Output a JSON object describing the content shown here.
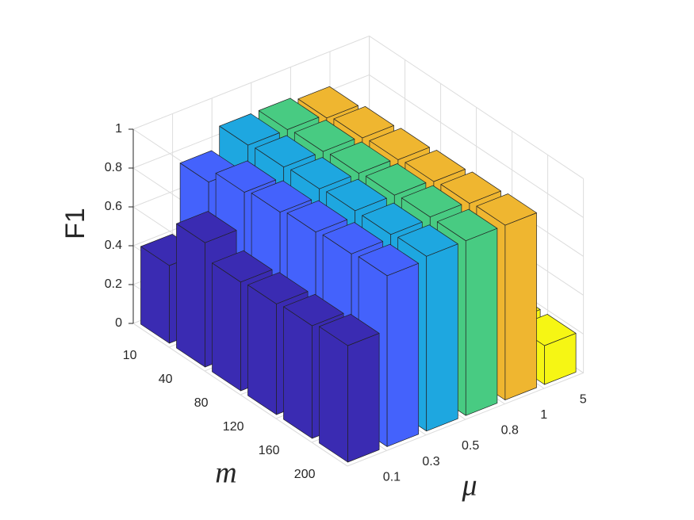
{
  "chart_data": {
    "type": "bar3",
    "xlabel": "m",
    "ylabel": "μ",
    "zlabel": "F1",
    "categories": [
      "10",
      "40",
      "80",
      "120",
      "160",
      "200"
    ],
    "series": [
      {
        "name": "0.1",
        "color": "#3a2bb2",
        "values": [
          0.4,
          0.64,
          0.56,
          0.57,
          0.58,
          0.6
        ]
      },
      {
        "name": "0.3",
        "color": "#4462fc",
        "values": [
          0.75,
          0.82,
          0.84,
          0.86,
          0.87,
          0.88
        ]
      },
      {
        "name": "0.5",
        "color": "#1ea7e0",
        "values": [
          0.86,
          0.87,
          0.88,
          0.89,
          0.89,
          0.9
        ]
      },
      {
        "name": "0.8",
        "color": "#48cb82",
        "values": [
          0.86,
          0.87,
          0.88,
          0.89,
          0.9,
          0.9
        ]
      },
      {
        "name": "1",
        "color": "#efb630",
        "values": [
          0.84,
          0.86,
          0.87,
          0.88,
          0.89,
          0.9
        ]
      },
      {
        "name": "5",
        "color": "#f6f614",
        "values": [
          0.2,
          0.2,
          0.2,
          0.2,
          0.2,
          0.2
        ]
      }
    ],
    "zlim": [
      0,
      1
    ],
    "zticks": [
      0,
      0.2,
      0.4,
      0.6,
      0.8,
      1
    ],
    "grid": true
  }
}
